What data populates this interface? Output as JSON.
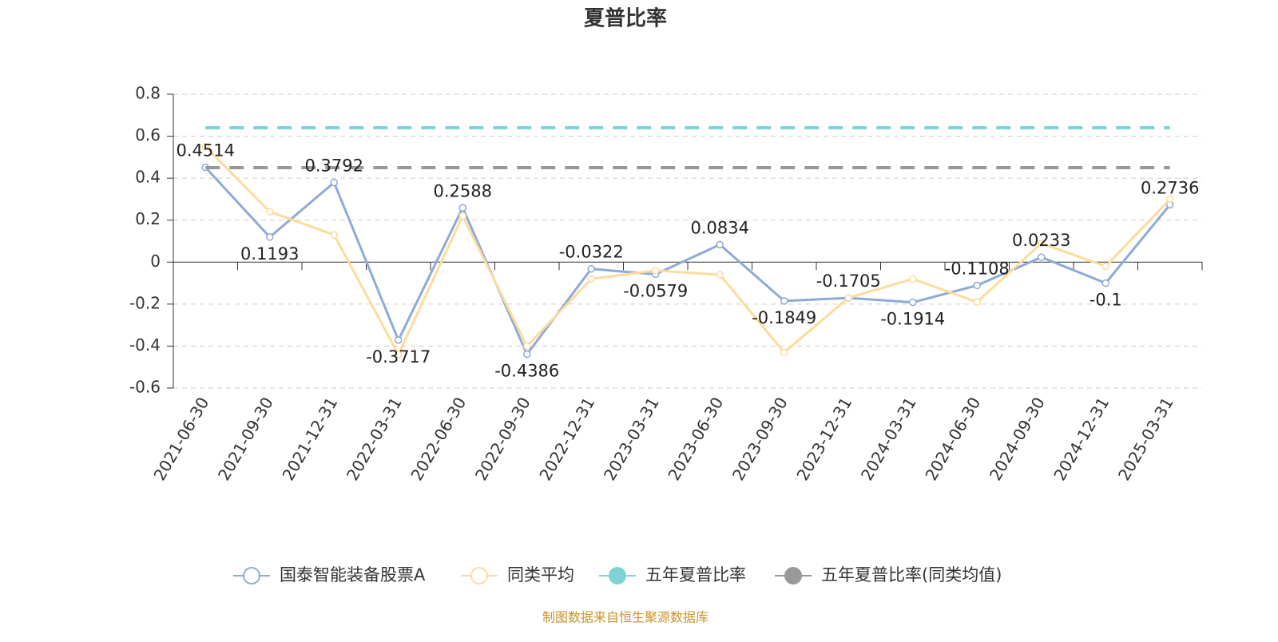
{
  "chart_data": {
    "type": "line",
    "title": "夏普比率",
    "categories": [
      "2021-06-30",
      "2021-09-30",
      "2021-12-31",
      "2022-03-31",
      "2022-06-30",
      "2022-09-30",
      "2022-12-31",
      "2023-03-31",
      "2023-06-30",
      "2023-09-30",
      "2023-12-31",
      "2024-03-31",
      "2024-06-30",
      "2024-09-30",
      "2024-12-31",
      "2025-03-31"
    ],
    "series": [
      {
        "name": "国泰智能装备股票A",
        "color": "#8eaad8",
        "values": [
          0.4514,
          0.1193,
          0.3792,
          -0.3717,
          0.2588,
          -0.4386,
          -0.0322,
          -0.0579,
          0.0834,
          -0.1849,
          -0.1705,
          -0.1914,
          -0.1108,
          0.0233,
          -0.1,
          0.2736
        ],
        "data_labels": true
      },
      {
        "name": "同类平均",
        "color": "#fddc9b",
        "values": [
          0.55,
          0.24,
          0.13,
          -0.44,
          0.22,
          -0.4,
          -0.08,
          -0.04,
          -0.06,
          -0.43,
          -0.17,
          -0.08,
          -0.19,
          0.09,
          -0.02,
          0.3
        ]
      },
      {
        "name": "五年夏普比率",
        "color": "#7dd3d6",
        "value": 0.64,
        "style": "dashed"
      },
      {
        "name": "五年夏普比率(同类均值)",
        "color": "#999999",
        "value": 0.45,
        "style": "dashed"
      }
    ],
    "ylim": [
      -0.6,
      0.8
    ],
    "yticks": [
      -0.6,
      -0.4,
      -0.2,
      0,
      0.2,
      0.4,
      0.6,
      0.8
    ],
    "grid": true,
    "legend": "bottom",
    "source": "制图数据来自恒生聚源数据库"
  }
}
